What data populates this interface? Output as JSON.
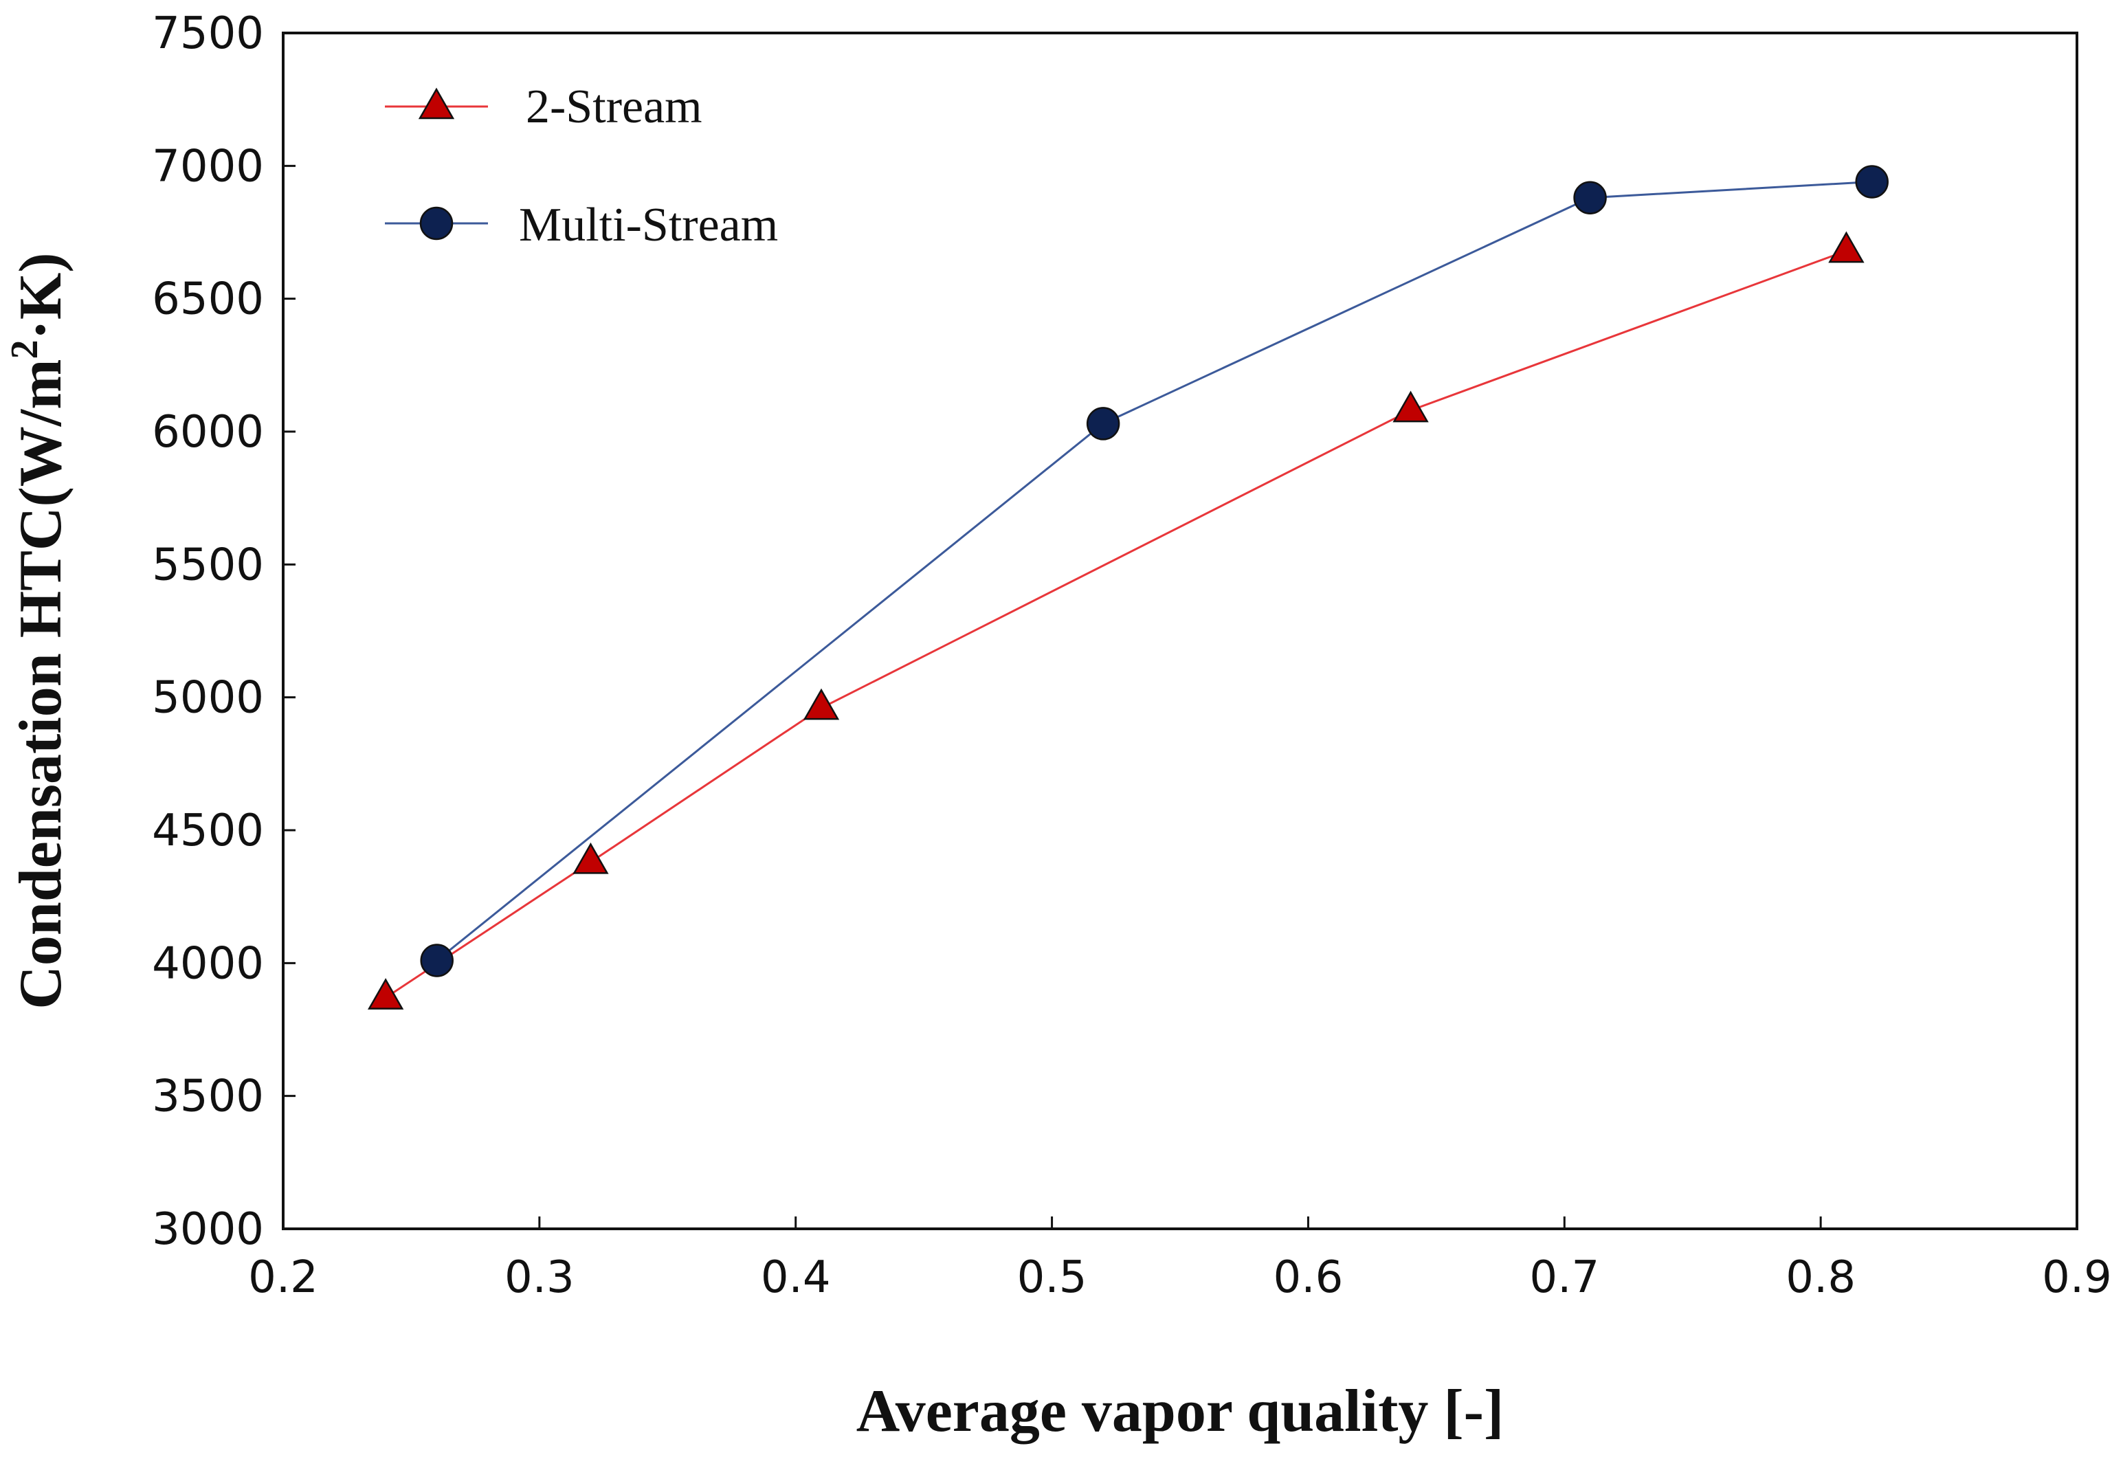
{
  "chart_data": {
    "type": "line",
    "xlabel": "Average vapor quality [-]",
    "ylabel_main": "Condensation HTC(W/m",
    "ylabel_sup": "2",
    "ylabel_tail": "·K)",
    "xlim": [
      0.2,
      0.9
    ],
    "ylim": [
      3000,
      7500
    ],
    "xticks": [
      0.2,
      0.3,
      0.4,
      0.5,
      0.6,
      0.7,
      0.8,
      0.9
    ],
    "yticks": [
      3000,
      3500,
      4000,
      4500,
      5000,
      5500,
      6000,
      6500,
      7000,
      7500
    ],
    "xtick_labels": [
      "0.2",
      "0.3",
      "0.4",
      "0.5",
      "0.6",
      "0.7",
      "0.8",
      "0.9"
    ],
    "ytick_labels": [
      "3000",
      "3500",
      "4000",
      "4500",
      "5000",
      "5500",
      "6000",
      "6500",
      "7000",
      "7500"
    ],
    "grid": false,
    "legend_position": "top-left",
    "series": [
      {
        "name": "2-Stream",
        "marker": "triangle",
        "line_color": "#e8363a",
        "marker_fill": "#c00000",
        "x": [
          0.24,
          0.32,
          0.41,
          0.64,
          0.81
        ],
        "y": [
          3870,
          4380,
          4960,
          6080,
          6680
        ]
      },
      {
        "name": "Multi-Stream",
        "marker": "circle",
        "line_color": "#3c5a9a",
        "marker_fill": "#0d2150",
        "x": [
          0.26,
          0.52,
          0.71,
          0.82
        ],
        "y": [
          4010,
          6030,
          6880,
          6940
        ]
      }
    ]
  }
}
